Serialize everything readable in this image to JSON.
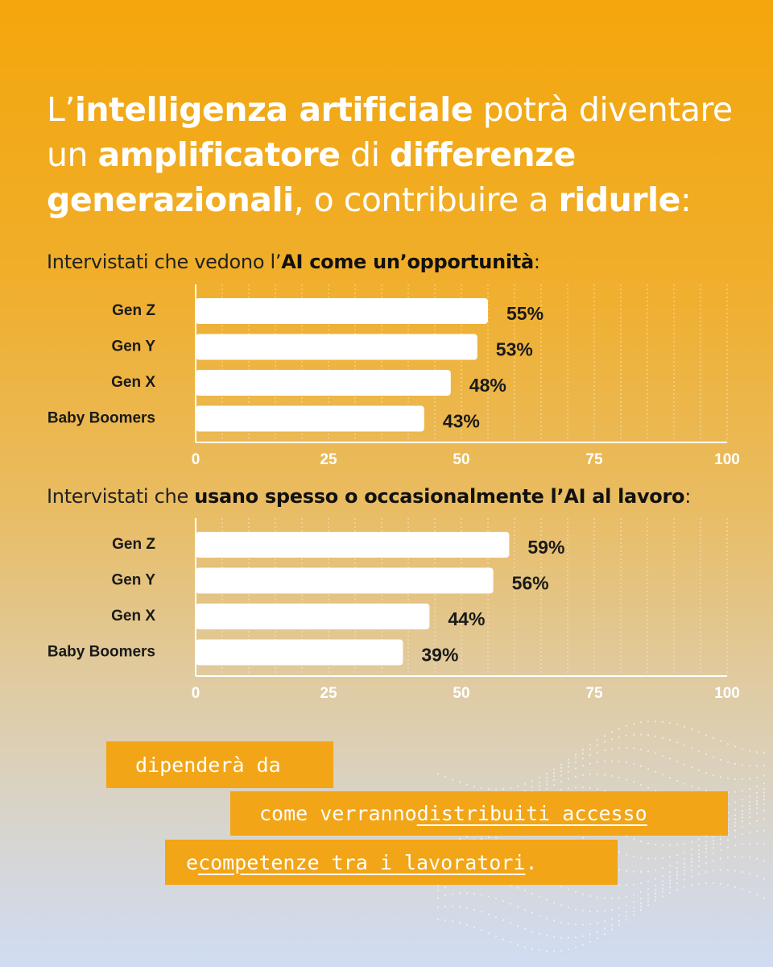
{
  "title": {
    "l1_p1": "L’",
    "l1_b1": "intelligenza artificiale",
    "l1_p2": " potrà diventare",
    "l2_p1": "un ",
    "l2_b1": "amplificatore",
    "l2_p2": " di ",
    "l2_b2": "differenze",
    "l3_b1": "generazionali",
    "l3_p1": ", o contribuire a ",
    "l3_b2": "ridurle",
    "l3_p2": ":"
  },
  "chart1_subtitle": {
    "pre": "Intervistati che vedono l’",
    "bold": "AI come un’opportunità",
    "post": ":"
  },
  "chart2_subtitle": {
    "pre": "Intervistati che ",
    "bold": "usano spesso o occasionalmente l’AI al lavoro",
    "post": ":"
  },
  "chart_data": [
    {
      "type": "bar",
      "orientation": "horizontal",
      "title": "Intervistati che vedono l’AI come un’opportunità:",
      "categories": [
        "Gen Z",
        "Gen Y",
        "Gen X",
        "Baby Boomers"
      ],
      "values": [
        55,
        53,
        48,
        43
      ],
      "value_labels": [
        "55%",
        "53%",
        "48%",
        "43%"
      ],
      "xlim": [
        0,
        100
      ],
      "ticks": [
        "0",
        "25",
        "50",
        "75",
        "100"
      ],
      "grid": true,
      "bar_color": "#FFFFFF"
    },
    {
      "type": "bar",
      "orientation": "horizontal",
      "title": "Intervistati che usano spesso o occasionalmente l’AI al lavoro:",
      "categories": [
        "Gen Z",
        "Gen Y",
        "Gen X",
        "Baby Boomers"
      ],
      "values": [
        59,
        56,
        44,
        39
      ],
      "value_labels": [
        "59%",
        "56%",
        "44%",
        "39%"
      ],
      "xlim": [
        0,
        100
      ],
      "ticks": [
        "0",
        "25",
        "50",
        "75",
        "100"
      ],
      "grid": true,
      "bar_color": "#FFFFFF"
    }
  ],
  "callout": {
    "line1": "dipenderà da",
    "line2_pre": "come verranno ",
    "line2_u": "distribuiti accesso ",
    "line3_pre": "e ",
    "line3_u": "competenze tra i lavoratori",
    "line3_post": "."
  },
  "colors": {
    "background_top": "#F4A60C",
    "background_bottom": "#CFDCF2",
    "bar": "#FFFFFF",
    "callout_box": "#F2A516",
    "label_text": "#1A1A1A"
  }
}
